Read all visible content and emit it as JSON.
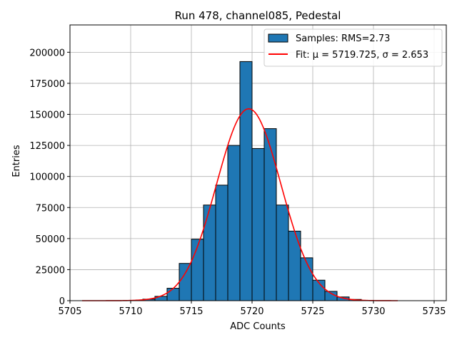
{
  "chart_data": {
    "type": "bar",
    "title": "Run 478, channel085, Pedestal",
    "xlabel": "ADC Counts",
    "ylabel": "Entries",
    "xlim": [
      5705,
      5736
    ],
    "ylim": [
      0,
      222000
    ],
    "xticks": [
      5705,
      5710,
      5715,
      5720,
      5725,
      5730,
      5735
    ],
    "yticks": [
      0,
      25000,
      50000,
      75000,
      100000,
      125000,
      150000,
      175000,
      200000
    ],
    "grid": true,
    "legend_position": "top-right",
    "bar_color": "#1f77b4",
    "fit_color": "#ff0000",
    "histogram": {
      "name": "Samples: RMS=2.73",
      "bins": [
        {
          "left": 5710,
          "right": 5711,
          "value": 0
        },
        {
          "left": 5711,
          "right": 5712,
          "value": 1200
        },
        {
          "left": 5712,
          "right": 5713,
          "value": 3500
        },
        {
          "left": 5713,
          "right": 5714,
          "value": 10000
        },
        {
          "left": 5714,
          "right": 5715,
          "value": 30000
        },
        {
          "left": 5715,
          "right": 5716,
          "value": 49500
        },
        {
          "left": 5716,
          "right": 5717,
          "value": 77000
        },
        {
          "left": 5717,
          "right": 5718,
          "value": 93000
        },
        {
          "left": 5718,
          "right": 5719,
          "value": 125000
        },
        {
          "left": 5719,
          "right": 5720,
          "value": 192500
        },
        {
          "left": 5720,
          "right": 5721,
          "value": 122500
        },
        {
          "left": 5721,
          "right": 5722,
          "value": 138500
        },
        {
          "left": 5722,
          "right": 5723,
          "value": 77000
        },
        {
          "left": 5723,
          "right": 5724,
          "value": 56000
        },
        {
          "left": 5724,
          "right": 5725,
          "value": 34500
        },
        {
          "left": 5725,
          "right": 5726,
          "value": 16500
        },
        {
          "left": 5726,
          "right": 5727,
          "value": 7500
        },
        {
          "left": 5727,
          "right": 5728,
          "value": 3000
        },
        {
          "left": 5728,
          "right": 5729,
          "value": 1000
        }
      ]
    },
    "fit": {
      "name": "Fit: μ = 5719.725, σ = 2.653",
      "mu": 5719.725,
      "sigma": 2.653,
      "amplitude": 154500,
      "x_range": [
        5706,
        5732
      ]
    }
  }
}
